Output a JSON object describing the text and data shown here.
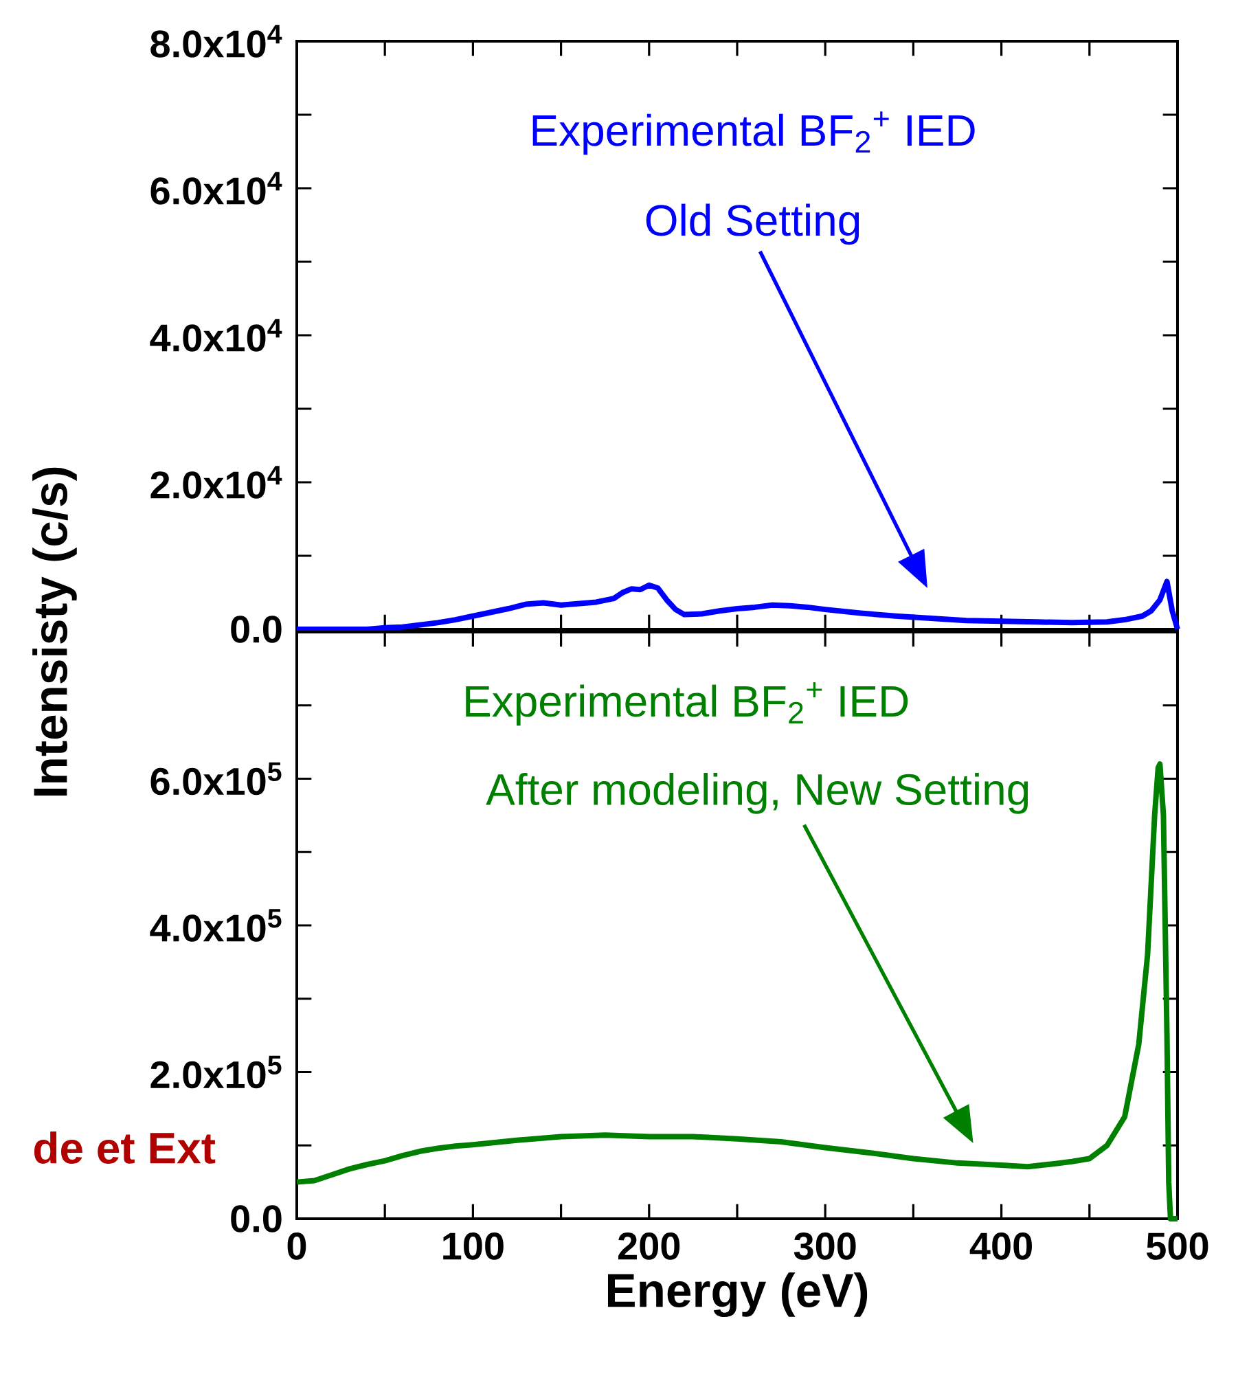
{
  "chart_data": [
    {
      "type": "line",
      "xlim": [
        0,
        500
      ],
      "ylim": [
        0,
        80000
      ],
      "xticks": [
        0,
        {
          "value": 50,
          "label": null
        },
        100,
        {
          "value": 150,
          "label": null
        },
        200,
        {
          "value": 250,
          "label": null
        },
        300,
        {
          "value": 350,
          "label": null
        },
        400,
        {
          "value": 450,
          "label": null
        },
        500
      ],
      "yticks": [
        {
          "value": 0,
          "label": "0.0"
        },
        {
          "value": 10000,
          "label": null
        },
        {
          "value": 20000,
          "label": "2.0x10$^{4}$"
        },
        {
          "value": 30000,
          "label": null
        },
        {
          "value": 40000,
          "label": "4.0x10$^{4}$"
        },
        {
          "value": 50000,
          "label": null
        },
        {
          "value": 60000,
          "label": "6.0x10$^{4}$"
        },
        {
          "value": 70000,
          "label": null
        },
        {
          "value": 80000,
          "label": "8.0x10$^{4}$"
        }
      ],
      "tick_labels": "y",
      "grid": false,
      "marker": "none",
      "line_style": "solid",
      "series": [
        {
          "color": "#0000ff",
          "x": [
            0,
            20,
            40,
            50,
            60,
            70,
            80,
            90,
            100,
            110,
            120,
            130,
            140,
            150,
            160,
            170,
            180,
            185,
            190,
            195,
            200,
            205,
            210,
            215,
            220,
            230,
            240,
            250,
            260,
            270,
            280,
            290,
            300,
            320,
            340,
            360,
            380,
            400,
            420,
            440,
            460,
            470,
            480,
            485,
            490,
            494,
            497,
            500
          ],
          "values": [
            0,
            0,
            0,
            200,
            300,
            600,
            900,
            1300,
            1800,
            2300,
            2800,
            3400,
            3600,
            3300,
            3500,
            3700,
            4200,
            5000,
            5500,
            5400,
            6000,
            5600,
            4000,
            2700,
            2000,
            2100,
            2500,
            2800,
            3000,
            3300,
            3200,
            3000,
            2700,
            2200,
            1800,
            1500,
            1200,
            1100,
            1000,
            900,
            1000,
            1300,
            1800,
            2500,
            4000,
            6500,
            2500,
            0
          ]
        }
      ],
      "annotations": [
        "Experimental BF$_{2}$$^{+}$ IED",
        "Old Setting"
      ]
    },
    {
      "type": "line",
      "xlim": [
        0,
        500
      ],
      "ylim": [
        0,
        800000
      ],
      "xticks": [
        0,
        {
          "value": 50,
          "label": null
        },
        100,
        {
          "value": 150,
          "label": null
        },
        200,
        {
          "value": 250,
          "label": null
        },
        300,
        {
          "value": 350,
          "label": null
        },
        400,
        {
          "value": 450,
          "label": null
        },
        500
      ],
      "yticks": [
        {
          "value": 0,
          "label": "0.0"
        },
        {
          "value": 100000,
          "label": null
        },
        {
          "value": 200000,
          "label": "2.0x10$^{5}$"
        },
        {
          "value": 300000,
          "label": null
        },
        {
          "value": 400000,
          "label": "4.0x10$^{5}$"
        },
        {
          "value": 500000,
          "label": null
        },
        {
          "value": 600000,
          "label": "6.0x10$^{5}$"
        },
        {
          "value": 700000,
          "label": null
        }
      ],
      "xlabel": "Energy (eV)",
      "ylabel": "Intensisty (c/s)",
      "grid": false,
      "marker": "none",
      "line_style": "solid",
      "series": [
        {
          "color": "#008000",
          "x": [
            0,
            10,
            20,
            30,
            40,
            50,
            60,
            70,
            80,
            90,
            100,
            125,
            150,
            175,
            200,
            225,
            250,
            275,
            300,
            325,
            350,
            375,
            400,
            415,
            430,
            440,
            450,
            460,
            470,
            478,
            483,
            487,
            489,
            490,
            492,
            494,
            495,
            496,
            500
          ],
          "values": [
            50000,
            52000,
            60000,
            68000,
            74000,
            79000,
            86000,
            92000,
            96000,
            99000,
            101000,
            107000,
            112000,
            114000,
            112000,
            112000,
            109000,
            105000,
            97000,
            90000,
            82000,
            76000,
            73000,
            71000,
            75000,
            78000,
            82000,
            100000,
            139000,
            238000,
            360000,
            550000,
            615000,
            620000,
            550000,
            250000,
            50000,
            0,
            0
          ]
        }
      ],
      "annotations": [
        "Experimental BF$_{2}$$^{+}$ IED",
        "After modeling, New Setting",
        "de et Ext"
      ]
    }
  ]
}
